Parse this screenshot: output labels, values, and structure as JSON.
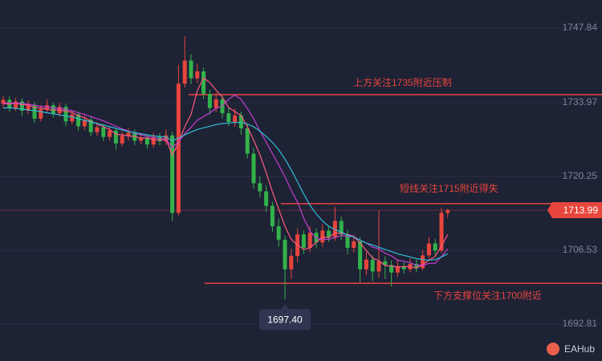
{
  "chart_data": {
    "type": "candlestick",
    "ylim": [
      1685.96,
      1753.06
    ],
    "yticks": [
      1747.84,
      1733.97,
      1720.25,
      1706.53,
      1692.81
    ],
    "grid": true,
    "up_color": "#e8453c",
    "down_color": "#33b24a",
    "candles": [
      [
        1733.8,
        1735.3,
        1733.0,
        1734.5
      ],
      [
        1734.5,
        1735.2,
        1732.3,
        1733.0
      ],
      [
        1733.0,
        1734.9,
        1732.4,
        1734.2
      ],
      [
        1734.2,
        1734.8,
        1731.6,
        1732.5
      ],
      [
        1732.5,
        1734.4,
        1731.9,
        1733.6
      ],
      [
        1733.6,
        1734.1,
        1730.2,
        1731.0
      ],
      [
        1731.0,
        1733.5,
        1730.5,
        1732.8
      ],
      [
        1732.8,
        1734.6,
        1732.1,
        1733.5
      ],
      [
        1733.5,
        1734.0,
        1731.2,
        1732.0
      ],
      [
        1732.0,
        1734.0,
        1731.4,
        1733.2
      ],
      [
        1733.2,
        1733.8,
        1729.6,
        1730.5
      ],
      [
        1730.5,
        1732.6,
        1729.9,
        1731.8
      ],
      [
        1731.8,
        1732.3,
        1728.8,
        1729.6
      ],
      [
        1729.6,
        1731.6,
        1728.9,
        1730.8
      ],
      [
        1730.8,
        1731.4,
        1727.7,
        1728.5
      ],
      [
        1728.5,
        1730.3,
        1727.8,
        1729.4
      ],
      [
        1729.4,
        1730.0,
        1726.8,
        1727.6
      ],
      [
        1727.6,
        1729.6,
        1726.9,
        1728.8
      ],
      [
        1728.8,
        1729.3,
        1725.2,
        1726.4
      ],
      [
        1726.4,
        1728.6,
        1725.8,
        1727.8
      ],
      [
        1727.8,
        1729.2,
        1727.0,
        1728.4
      ],
      [
        1728.4,
        1729.0,
        1726.1,
        1726.9
      ],
      [
        1726.9,
        1728.3,
        1726.2,
        1727.5
      ],
      [
        1727.5,
        1728.1,
        1725.4,
        1726.2
      ],
      [
        1726.2,
        1728.4,
        1725.6,
        1727.6
      ],
      [
        1727.6,
        1728.3,
        1726.0,
        1726.8
      ],
      [
        1726.8,
        1729.0,
        1726.1,
        1727.9
      ],
      [
        1727.9,
        1728.6,
        1712.0,
        1713.5
      ],
      [
        1713.5,
        1741.0,
        1713.0,
        1737.5
      ],
      [
        1737.5,
        1746.3,
        1736.8,
        1741.8
      ],
      [
        1741.8,
        1743.0,
        1737.4,
        1738.5
      ],
      [
        1738.5,
        1741.2,
        1737.6,
        1739.8
      ],
      [
        1739.8,
        1740.5,
        1734.6,
        1735.6
      ],
      [
        1735.6,
        1736.4,
        1731.8,
        1733.0
      ],
      [
        1733.0,
        1735.8,
        1732.2,
        1734.6
      ],
      [
        1734.6,
        1735.3,
        1731.0,
        1732.0
      ],
      [
        1732.0,
        1733.1,
        1729.6,
        1730.4
      ],
      [
        1730.4,
        1732.9,
        1729.5,
        1731.6
      ],
      [
        1731.6,
        1732.3,
        1728.0,
        1729.2
      ],
      [
        1729.2,
        1730.0,
        1723.6,
        1724.5
      ],
      [
        1724.5,
        1725.6,
        1718.0,
        1719.0
      ],
      [
        1719.0,
        1720.3,
        1716.4,
        1717.5
      ],
      [
        1717.5,
        1718.6,
        1713.6,
        1714.8
      ],
      [
        1714.8,
        1715.6,
        1710.0,
        1711.0
      ],
      [
        1711.0,
        1712.4,
        1707.2,
        1708.5
      ],
      [
        1708.5,
        1709.3,
        1697.4,
        1703.0
      ],
      [
        1703.0,
        1706.8,
        1701.2,
        1705.5
      ],
      [
        1705.5,
        1710.6,
        1704.3,
        1709.5
      ],
      [
        1709.5,
        1710.2,
        1705.8,
        1707.0
      ],
      [
        1707.0,
        1711.0,
        1706.2,
        1709.8
      ],
      [
        1709.8,
        1710.6,
        1706.9,
        1708.0
      ],
      [
        1708.0,
        1711.4,
        1707.2,
        1710.2
      ],
      [
        1710.2,
        1711.0,
        1708.1,
        1709.0
      ],
      [
        1709.0,
        1714.6,
        1708.3,
        1712.0
      ],
      [
        1712.0,
        1712.8,
        1708.4,
        1709.5
      ],
      [
        1709.5,
        1710.3,
        1705.8,
        1707.0
      ],
      [
        1707.0,
        1709.4,
        1706.1,
        1708.2
      ],
      [
        1708.2,
        1709.0,
        1700.6,
        1703.0
      ],
      [
        1703.0,
        1706.2,
        1701.9,
        1704.8
      ],
      [
        1704.8,
        1705.6,
        1700.8,
        1702.6
      ],
      [
        1702.6,
        1713.9,
        1701.5,
        1704.5
      ],
      [
        1704.5,
        1705.4,
        1701.2,
        1703.8
      ],
      [
        1703.8,
        1704.6,
        1699.8,
        1702.4
      ],
      [
        1702.4,
        1704.7,
        1701.6,
        1703.6
      ],
      [
        1703.6,
        1704.3,
        1702.2,
        1703.0
      ],
      [
        1703.0,
        1705.0,
        1702.4,
        1704.0
      ],
      [
        1704.0,
        1704.8,
        1702.5,
        1703.2
      ],
      [
        1703.2,
        1706.6,
        1702.8,
        1705.6
      ],
      [
        1705.6,
        1709.0,
        1705.0,
        1707.8
      ],
      [
        1707.8,
        1708.7,
        1705.6,
        1706.5
      ],
      [
        1706.5,
        1714.5,
        1706.0,
        1713.5
      ],
      [
        1713.5,
        1714.3,
        1712.6,
        1713.99
      ]
    ],
    "series": [
      {
        "color": "#ff5a7e",
        "values": [
          1733.8,
          1733.7,
          1733.9,
          1733.6,
          1733.6,
          1733.0,
          1733.0,
          1732.7,
          1732.6,
          1732.6,
          1732.4,
          1732.2,
          1731.5,
          1731.2,
          1730.5,
          1730.0,
          1729.5,
          1729.0,
          1728.1,
          1728.0,
          1727.8,
          1727.7,
          1727.4,
          1727.4,
          1727.1,
          1727.0,
          1727.2,
          1724.2,
          1726.5,
          1729.5,
          1731.8,
          1736.2,
          1738.6,
          1737.7,
          1736.3,
          1735.0,
          1733.1,
          1732.3,
          1731.6,
          1729.5,
          1727.0,
          1724.3,
          1721.0,
          1717.4,
          1714.2,
          1711.0,
          1708.6,
          1707.5,
          1706.7,
          1707.0,
          1708.0,
          1709.0,
          1708.9,
          1709.8,
          1709.7,
          1709.5,
          1709.1,
          1707.9,
          1706.5,
          1705.1,
          1704.6,
          1703.7,
          1703.6,
          1703.4,
          1703.5,
          1703.5,
          1703.2,
          1703.9,
          1704.7,
          1705.4,
          1707.3,
          1709.5
        ]
      },
      {
        "color": "#c43fd2",
        "values": [
          1734.0,
          1733.9,
          1733.9,
          1733.8,
          1733.7,
          1733.5,
          1733.3,
          1733.2,
          1733.0,
          1732.9,
          1732.7,
          1732.5,
          1732.1,
          1731.8,
          1731.4,
          1731.0,
          1730.6,
          1730.1,
          1729.6,
          1729.1,
          1728.7,
          1728.3,
          1728.0,
          1727.7,
          1727.5,
          1727.3,
          1727.2,
          1725.6,
          1726.7,
          1728.2,
          1729.4,
          1730.7,
          1731.4,
          1732.1,
          1732.9,
          1733.4,
          1734.6,
          1735.4,
          1734.6,
          1732.9,
          1731.0,
          1728.7,
          1726.7,
          1724.5,
          1722.4,
          1720.2,
          1717.7,
          1715.5,
          1712.5,
          1710.1,
          1708.8,
          1708.5,
          1708.6,
          1708.9,
          1709.3,
          1709.1,
          1709.1,
          1708.4,
          1707.9,
          1707.1,
          1706.8,
          1706.0,
          1705.5,
          1704.7,
          1704.5,
          1704.2,
          1703.8,
          1703.7,
          1704.1,
          1704.1,
          1705.4,
          1706.8
        ]
      },
      {
        "color": "#33bcd6",
        "values": [
          1733.0,
          1733.0,
          1732.9,
          1732.8,
          1732.6,
          1732.5,
          1732.3,
          1732.1,
          1731.9,
          1731.7,
          1731.5,
          1731.3,
          1731.0,
          1730.7,
          1730.4,
          1730.1,
          1729.8,
          1729.5,
          1729.2,
          1728.9,
          1728.6,
          1728.4,
          1728.2,
          1728.0,
          1727.8,
          1727.7,
          1727.6,
          1726.9,
          1727.4,
          1728.0,
          1728.5,
          1729.0,
          1729.3,
          1729.6,
          1729.9,
          1730.1,
          1730.2,
          1730.3,
          1730.3,
          1730.0,
          1729.5,
          1728.7,
          1727.7,
          1726.6,
          1725.2,
          1723.5,
          1721.5,
          1719.3,
          1717.0,
          1714.9,
          1713.3,
          1712.0,
          1711.0,
          1710.4,
          1709.9,
          1709.4,
          1709.0,
          1708.4,
          1707.9,
          1707.5,
          1707.1,
          1706.7,
          1706.3,
          1705.9,
          1705.6,
          1705.3,
          1705.0,
          1704.8,
          1704.7,
          1704.8,
          1705.3,
          1705.9
        ]
      }
    ],
    "levels": [
      {
        "value": 1735.46,
        "label": "上方关注1735附近压制",
        "color": "#e8453c"
      },
      {
        "value": 1715.2,
        "label": "短线关注1715附近得失",
        "color": "#e8453c"
      },
      {
        "value": 1700.4,
        "label": "下方支撑位关注1700附近",
        "color": "#e8453c"
      }
    ],
    "low_marker": {
      "value": 1697.4,
      "label": "1697.40"
    },
    "brand": "EAHub"
  }
}
